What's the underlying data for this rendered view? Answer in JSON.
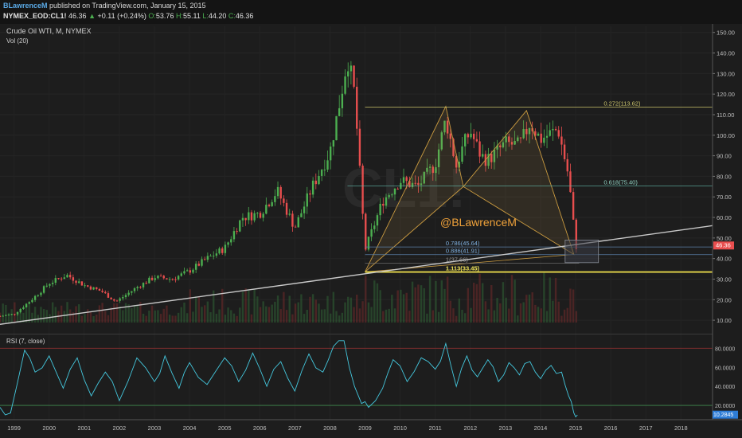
{
  "header": {
    "author": "BLawrenceM",
    "published": "published on TradingView.com, January 15, 2015",
    "symbol": "NYMEX_EOD:CL1!",
    "last": "46.36",
    "change": "+0.11 (+0.24%)",
    "open_label": "O:",
    "open": "53.76",
    "high_label": "H:",
    "high": "55.11",
    "low_label": "L:",
    "low": "44.20",
    "close_label": "C:",
    "close": "46.36"
  },
  "legend": {
    "title": "Crude Oil WTI, M, NYMEX",
    "volume": "Vol (20)",
    "rsi": "RSI (7, close)"
  },
  "watermark": "@BLawrenceM",
  "colors": {
    "up": "#4caf50",
    "down": "#e84e4e",
    "fib": "#c9c26a",
    "price_badge": "#e84e4e",
    "rsi_badge": "#2e7dd7",
    "rsi_line": "#44c7dd"
  },
  "chart_data": [
    {
      "type": "candlestick",
      "title": "Crude Oil WTI, M, NYMEX",
      "y_axis": {
        "min": 5,
        "max": 153,
        "ticks": [
          "150.00",
          "140.00",
          "130.00",
          "120.00",
          "110.00",
          "100.00",
          "90.00",
          "80.00",
          "70.00",
          "60.00",
          "50.00",
          "40.00",
          "30.00",
          "20.00",
          "10.00"
        ]
      },
      "x_axis": {
        "min": 1998.6,
        "max": 2018.9,
        "ticks": [
          "1999",
          "2000",
          "2001",
          "2002",
          "2003",
          "2004",
          "2005",
          "2006",
          "2007",
          "2008",
          "2009",
          "2010",
          "2011",
          "2012",
          "2013",
          "2014",
          "2015",
          "2016",
          "2017",
          "2018"
        ]
      },
      "close_series": {
        "x": [
          1998.6,
          1999.0,
          1999.5,
          2000.0,
          2000.5,
          2001.0,
          2001.5,
          2001.9,
          2002.5,
          2003.0,
          2003.5,
          2004.0,
          2004.5,
          2005.0,
          2005.5,
          2006.0,
          2006.5,
          2007.0,
          2007.5,
          2008.0,
          2008.3,
          2008.5,
          2008.7,
          2009.0,
          2009.5,
          2010.0,
          2010.5,
          2011.0,
          2011.3,
          2011.6,
          2011.8,
          2012.0,
          2012.3,
          2012.5,
          2013.0,
          2013.4,
          2013.7,
          2014.0,
          2014.5,
          2014.8,
          2015.0
        ],
        "y": [
          12,
          13,
          20,
          28,
          32,
          27,
          24,
          19,
          26,
          31,
          30,
          34,
          40,
          45,
          60,
          62,
          73,
          55,
          75,
          92,
          118,
          138,
          120,
          44,
          68,
          78,
          75,
          86,
          108,
          85,
          95,
          102,
          90,
          88,
          96,
          95,
          106,
          98,
          103,
          80,
          46
        ]
      },
      "last_price": "46.36",
      "fibonacci_levels": [
        {
          "label": "0.272(113.62)",
          "value": 113.62
        },
        {
          "label": "0.618(75.40)",
          "value": 75.4
        },
        {
          "label": "0.786(45.64)",
          "value": 45.64
        },
        {
          "label": "0.886(41.91)",
          "value": 41.91
        },
        {
          "label": "1(37.66)",
          "value": 37.66
        },
        {
          "label": "1.113(33.45)",
          "value": 33.45
        }
      ],
      "pattern_points": [
        {
          "x": 2009.0,
          "y": 33.5
        },
        {
          "x": 2011.3,
          "y": 114
        },
        {
          "x": 2011.8,
          "y": 75
        },
        {
          "x": 2013.6,
          "y": 112
        },
        {
          "x": 2014.95,
          "y": 42
        }
      ],
      "trendline": [
        {
          "x": 1998.6,
          "y": 8
        },
        {
          "x": 2018.9,
          "y": 56
        }
      ]
    },
    {
      "type": "line",
      "title": "RSI (7, close)",
      "y_axis": {
        "min": 5,
        "max": 92,
        "ticks": [
          "80.0000",
          "60.0000",
          "40.0000",
          "20.0000"
        ]
      },
      "levels": [
        80,
        20
      ],
      "x": [
        1998.6,
        1998.9,
        1999.3,
        1999.6,
        2000.0,
        2000.4,
        2000.8,
        2001.2,
        2001.6,
        2002.0,
        2002.5,
        2003.0,
        2003.3,
        2003.7,
        2004.0,
        2004.5,
        2005.0,
        2005.4,
        2005.8,
        2006.2,
        2006.6,
        2007.0,
        2007.4,
        2007.8,
        2008.1,
        2008.4,
        2008.7,
        2008.9,
        2009.1,
        2009.5,
        2009.8,
        2010.2,
        2010.6,
        2011.0,
        2011.3,
        2011.6,
        2011.9,
        2012.2,
        2012.5,
        2012.8,
        2013.1,
        2013.4,
        2013.7,
        2014.0,
        2014.3,
        2014.6,
        2014.8,
        2014.95,
        2015.05
      ],
      "values": [
        18,
        12,
        78,
        55,
        72,
        38,
        70,
        30,
        55,
        25,
        70,
        45,
        72,
        38,
        65,
        42,
        70,
        45,
        75,
        40,
        66,
        35,
        74,
        55,
        82,
        88,
        40,
        22,
        18,
        38,
        68,
        45,
        70,
        58,
        85,
        40,
        72,
        50,
        68,
        45,
        65,
        52,
        66,
        48,
        62,
        55,
        30,
        12,
        10
      ],
      "last_value": "10.2845"
    }
  ]
}
